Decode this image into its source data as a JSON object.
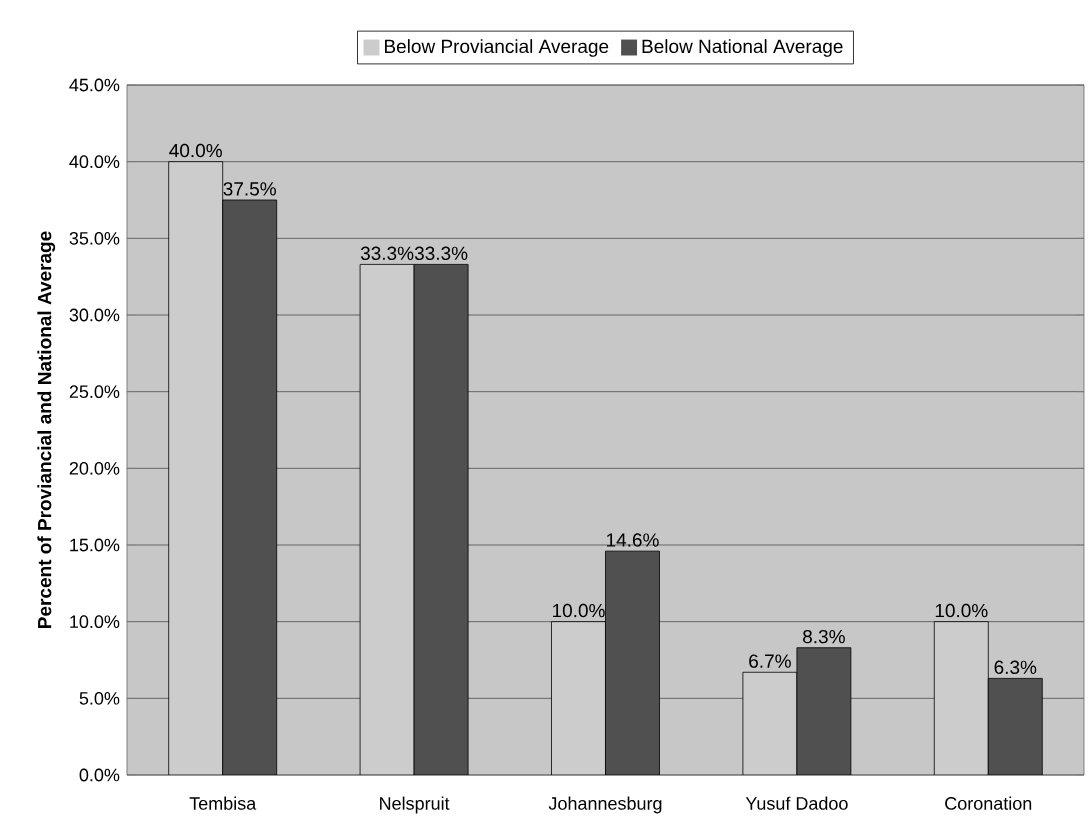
{
  "chart_data": {
    "type": "bar",
    "ylabel": "Percent of Proviancial and National Average",
    "categories": [
      "Tembisa",
      "Nelspruit",
      "Johannesburg",
      "Yusuf Dadoo",
      "Coronation"
    ],
    "series": [
      {
        "name": "Below Proviancial Average",
        "color": "#cccccc",
        "values": [
          40.0,
          33.3,
          10.0,
          6.7,
          10.0
        ],
        "value_labels": [
          "40.0%",
          "33.3%",
          "10.0%",
          "6.7%",
          "10.0%"
        ]
      },
      {
        "name": "Below National Average",
        "color": "#505050",
        "values": [
          37.5,
          33.3,
          14.6,
          8.3,
          6.3
        ],
        "value_labels": [
          "37.5%",
          "33.3%",
          "14.6%",
          "8.3%",
          "6.3%"
        ]
      }
    ],
    "ylim": [
      0,
      45
    ],
    "yticks": [
      {
        "value": 0,
        "label": "0.0%"
      },
      {
        "value": 5,
        "label": "5.0%"
      },
      {
        "value": 10,
        "label": "10.0%"
      },
      {
        "value": 15,
        "label": "15.0%"
      },
      {
        "value": 20,
        "label": "20.0%"
      },
      {
        "value": 25,
        "label": "25.0%"
      },
      {
        "value": 30,
        "label": "30.0%"
      },
      {
        "value": 35,
        "label": "35.0%"
      },
      {
        "value": 40,
        "label": "40.0%"
      },
      {
        "value": 45,
        "label": "45.0%"
      }
    ],
    "grid": "y",
    "legend": "top"
  }
}
